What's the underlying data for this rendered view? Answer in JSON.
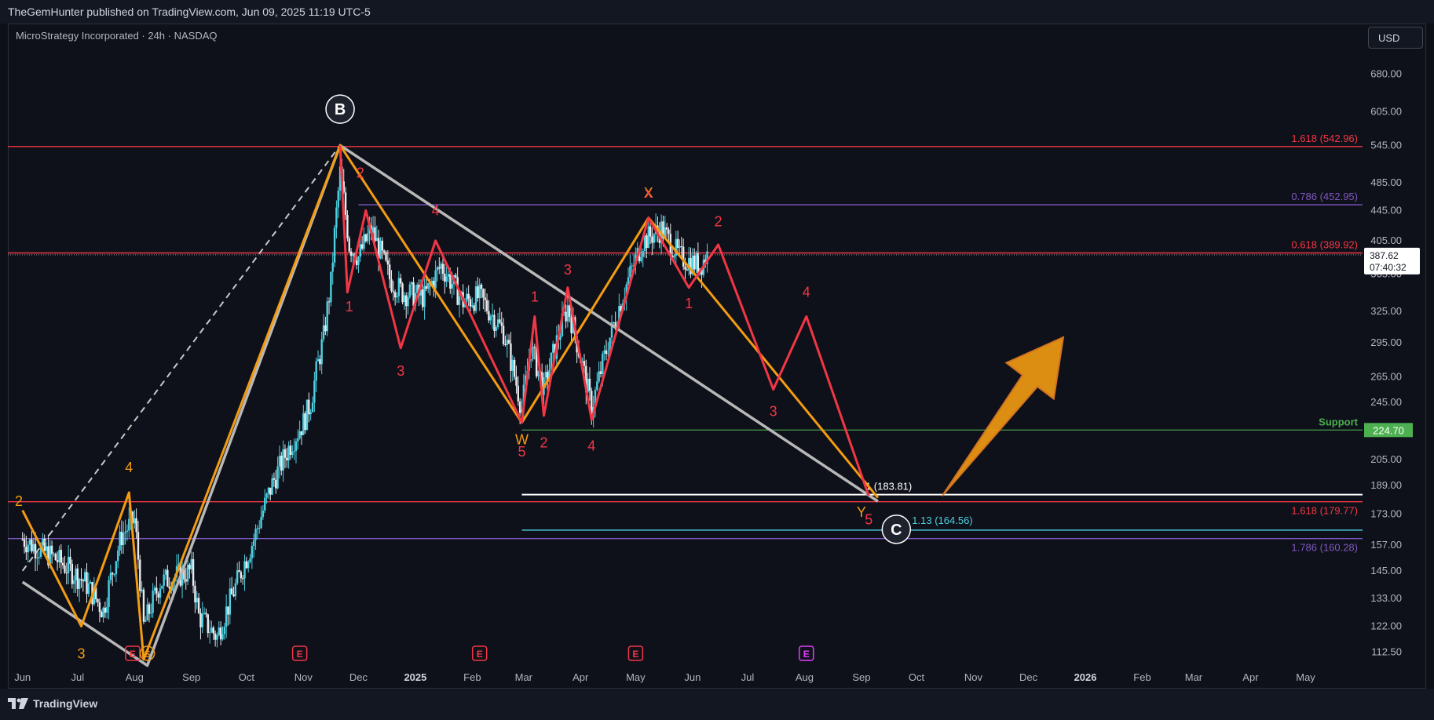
{
  "header": {
    "published_by": "TheGemHunter published on TradingView.com, Jun 09, 2025 11:19 UTC-5"
  },
  "symbol_info": "MicroStrategy Incorporated · 24h · NASDAQ",
  "currency_button": "USD",
  "footer": {
    "brand": "TradingView"
  },
  "price_badge": {
    "price": "387.62",
    "countdown": "07:40:32"
  },
  "chart_data": {
    "type": "candlestick",
    "title": "MicroStrategy Incorporated · 24h · NASDAQ",
    "y_scale": "log",
    "ylim": [
      105,
      740
    ],
    "y_ticks": [
      112.5,
      122,
      133,
      145,
      157,
      173,
      189,
      205,
      224.7,
      245,
      265,
      295,
      325,
      365,
      405,
      445,
      485,
      545,
      605,
      680
    ],
    "x_ticks": [
      {
        "label": "Jun",
        "date": "2024-06"
      },
      {
        "label": "Jul",
        "date": "2024-07"
      },
      {
        "label": "Aug",
        "date": "2024-08"
      },
      {
        "label": "Sep",
        "date": "2024-09"
      },
      {
        "label": "Oct",
        "date": "2024-10"
      },
      {
        "label": "Nov",
        "date": "2024-11"
      },
      {
        "label": "Dec",
        "date": "2024-12"
      },
      {
        "label": "2025",
        "date": "2025-01",
        "year": true
      },
      {
        "label": "Feb",
        "date": "2025-02"
      },
      {
        "label": "Mar",
        "date": "2025-03"
      },
      {
        "label": "Apr",
        "date": "2025-04"
      },
      {
        "label": "May",
        "date": "2025-05"
      },
      {
        "label": "Jun",
        "date": "2025-06"
      },
      {
        "label": "Jul",
        "date": "2025-07"
      },
      {
        "label": "Aug",
        "date": "2025-08"
      },
      {
        "label": "Sep",
        "date": "2025-09"
      },
      {
        "label": "Oct",
        "date": "2025-10"
      },
      {
        "label": "Nov",
        "date": "2025-11"
      },
      {
        "label": "Dec",
        "date": "2025-12"
      },
      {
        "label": "2026",
        "date": "2026-01",
        "year": true
      },
      {
        "label": "Feb",
        "date": "2026-02"
      },
      {
        "label": "Mar",
        "date": "2026-03"
      },
      {
        "label": "Apr",
        "date": "2026-04"
      },
      {
        "label": "May",
        "date": "2026-05"
      }
    ],
    "price_path": [
      [
        "2024-06-01",
        160
      ],
      [
        "2024-06-20",
        150
      ],
      [
        "2024-07-05",
        140
      ],
      [
        "2024-07-15",
        128
      ],
      [
        "2024-07-25",
        162
      ],
      [
        "2024-08-01",
        170
      ],
      [
        "2024-08-06",
        122
      ],
      [
        "2024-08-15",
        140
      ],
      [
        "2024-09-01",
        145
      ],
      [
        "2024-09-05",
        126
      ],
      [
        "2024-09-15",
        118
      ],
      [
        "2024-09-25",
        138
      ],
      [
        "2024-10-05",
        160
      ],
      [
        "2024-10-15",
        190
      ],
      [
        "2024-10-25",
        215
      ],
      [
        "2024-11-01",
        230
      ],
      [
        "2024-11-05",
        245
      ],
      [
        "2024-11-12",
        300
      ],
      [
        "2024-11-16",
        355
      ],
      [
        "2024-11-21",
        500
      ],
      [
        "2024-11-26",
        400
      ],
      [
        "2024-12-01",
        385
      ],
      [
        "2024-12-08",
        420
      ],
      [
        "2024-12-18",
        360
      ],
      [
        "2024-12-25",
        345
      ],
      [
        "2025-01-06",
        340
      ],
      [
        "2025-01-15",
        375
      ],
      [
        "2025-01-27",
        335
      ],
      [
        "2025-02-05",
        340
      ],
      [
        "2025-02-18",
        305
      ],
      [
        "2025-02-28",
        240
      ],
      [
        "2025-03-05",
        290
      ],
      [
        "2025-03-12",
        255
      ],
      [
        "2025-03-25",
        330
      ],
      [
        "2025-04-07",
        240
      ],
      [
        "2025-04-22",
        330
      ],
      [
        "2025-05-05",
        405
      ],
      [
        "2025-05-15",
        420
      ],
      [
        "2025-05-25",
        385
      ],
      [
        "2025-06-05",
        375
      ],
      [
        "2025-06-09",
        387.62
      ]
    ],
    "levels": [
      {
        "label": "1.618 (542.96)",
        "value": 542.96,
        "color": "#f23645"
      },
      {
        "label": "0.786 (452.95)",
        "value": 452.95,
        "color": "#7e57c2"
      },
      {
        "label": "0.618 (389.92)",
        "value": 389.92,
        "color": "#f23645"
      },
      {
        "label": "Support",
        "value": 224.7,
        "color": "#4caf50",
        "badge": "224.70"
      },
      {
        "label": "1 (183.81)",
        "value": 183.81,
        "color": "#ffffff"
      },
      {
        "label": "1.618 (179.77)",
        "value": 179.77,
        "color": "#f23645"
      },
      {
        "label": "1.13 (164.56)",
        "value": 164.56,
        "color": "#4dd0e1"
      },
      {
        "label": "1.786 (160.28)",
        "value": 160.28,
        "color": "#7e57c2"
      }
    ],
    "grey_wave": [
      [
        "2024-06-01",
        140
      ],
      [
        "2024-08-08",
        108
      ],
      [
        "2024-11-21",
        545
      ],
      [
        "2025-09-10",
        180
      ]
    ],
    "grey_dashed": [
      [
        "2024-06-01",
        145
      ],
      [
        "2024-11-21",
        545
      ]
    ],
    "orange_wave": [
      [
        "2024-06-01",
        175
      ],
      [
        "2024-07-03",
        122
      ],
      [
        "2024-07-29",
        185
      ],
      [
        "2024-08-06",
        110
      ],
      [
        "2024-11-21",
        545
      ],
      [
        "2025-02-28",
        230
      ],
      [
        "2025-05-08",
        435
      ],
      [
        "2025-09-10",
        182
      ]
    ],
    "red_wave": [
      [
        "2024-11-21",
        545
      ],
      [
        "2024-11-25",
        345
      ],
      [
        "2024-12-05",
        445
      ],
      [
        "2024-12-24",
        290
      ],
      [
        "2025-01-12",
        405
      ],
      [
        "2025-02-28",
        230
      ],
      [
        "2025-03-07",
        320
      ],
      [
        "2025-03-12",
        235
      ],
      [
        "2025-03-25",
        350
      ],
      [
        "2025-04-07",
        232
      ],
      [
        "2025-05-08",
        435
      ],
      [
        "2025-05-30",
        350
      ],
      [
        "2025-06-15",
        400
      ],
      [
        "2025-07-15",
        255
      ],
      [
        "2025-08-02",
        320
      ],
      [
        "2025-09-05",
        183
      ]
    ],
    "wave_labels": [
      {
        "text": "B",
        "date": "2024-11-21",
        "price": 610,
        "color": "#ffffff",
        "circle": true
      },
      {
        "text": "C",
        "date": "2025-09-20",
        "price": 165,
        "color": "#ffffff",
        "circle": true
      },
      {
        "text": "2",
        "date": "2024-12-02",
        "price": 500,
        "color": "#f23645"
      },
      {
        "text": "4",
        "date": "2025-01-12",
        "price": 445,
        "color": "#f23645"
      },
      {
        "text": "1",
        "date": "2024-11-26",
        "price": 330,
        "color": "#f23645"
      },
      {
        "text": "3",
        "date": "2024-12-24",
        "price": 270,
        "color": "#f23645"
      },
      {
        "text": "1",
        "date": "2025-03-07",
        "price": 340,
        "color": "#f23645"
      },
      {
        "text": "3",
        "date": "2025-03-25",
        "price": 370,
        "color": "#f23645"
      },
      {
        "text": "5",
        "date": "2025-02-28",
        "price": 210,
        "color": "#f23645"
      },
      {
        "text": "2",
        "date": "2025-03-12",
        "price": 216,
        "color": "#f23645"
      },
      {
        "text": "4",
        "date": "2025-04-07",
        "price": 214,
        "color": "#f23645"
      },
      {
        "text": "W",
        "date": "2025-02-28",
        "price": 218,
        "color": "#f39c12"
      },
      {
        "text": "X",
        "date": "2025-05-08",
        "price": 470,
        "color": "#f39c12"
      },
      {
        "text": "x",
        "date": "2025-05-08",
        "price": 470,
        "color": "#f23645"
      },
      {
        "text": "2",
        "date": "2025-06-15",
        "price": 430,
        "color": "#f23645"
      },
      {
        "text": "1",
        "date": "2025-05-30",
        "price": 333,
        "color": "#f23645"
      },
      {
        "text": "4",
        "date": "2025-08-02",
        "price": 345,
        "color": "#f23645"
      },
      {
        "text": "3",
        "date": "2025-07-15",
        "price": 238,
        "color": "#f23645"
      },
      {
        "text": "Y",
        "date": "2025-09-01",
        "price": 174,
        "color": "#f39c12"
      },
      {
        "text": "5",
        "date": "2025-09-05",
        "price": 170,
        "color": "#f23645"
      },
      {
        "text": "4",
        "date": "2024-07-29",
        "price": 200,
        "color": "#f39c12"
      },
      {
        "text": "3",
        "date": "2024-07-03",
        "price": 112,
        "color": "#f39c12"
      },
      {
        "text": "2",
        "date": "2024-05-30",
        "price": 180,
        "color": "#f39c12"
      }
    ],
    "event_markers": [
      {
        "type": "E",
        "date": "2024-07-31",
        "color": "#f23645"
      },
      {
        "type": "S",
        "date": "2024-08-08",
        "color": "#f39c12",
        "circle": true
      },
      {
        "type": "E",
        "date": "2024-10-30",
        "color": "#f23645"
      },
      {
        "type": "E",
        "date": "2025-02-05",
        "color": "#f23645"
      },
      {
        "type": "E",
        "date": "2025-05-01",
        "color": "#f23645"
      },
      {
        "type": "E",
        "date": "2025-08-02",
        "color": "#e040fb"
      }
    ],
    "projection_arrow": {
      "from": [
        "2025-10-15",
        183
      ],
      "to": [
        "2025-12-20",
        300
      ],
      "color": "#f39c12"
    }
  }
}
